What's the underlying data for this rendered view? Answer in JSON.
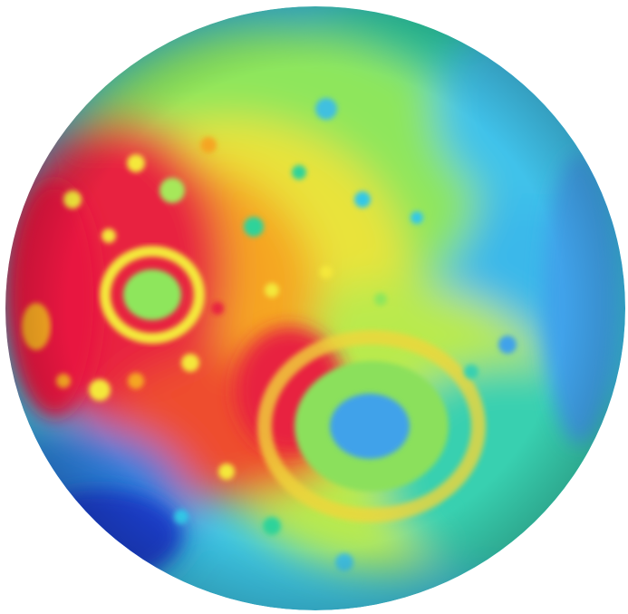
{
  "image": {
    "subject": "planetary-body",
    "background_color": "#ffffff",
    "palette": {
      "highest": "#e8153f",
      "high": "#f5a623",
      "mid_high": "#f4e83a",
      "mid": "#9be85a",
      "mid_low": "#2fd39a",
      "low": "#33c8e8",
      "lower": "#3fa2ea",
      "lowest": "#1b3fd1"
    },
    "features": [
      "sphere-body",
      "terrain-shading",
      "crater-basin",
      "large-crater",
      "impact-craters"
    ]
  }
}
